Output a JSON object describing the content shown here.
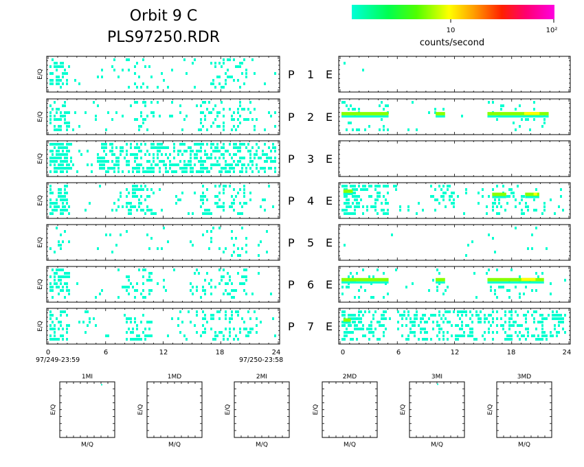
{
  "title": {
    "line1": "Orbit  9  C",
    "line2": "PLS97250.RDR"
  },
  "colorbar": {
    "label": "counts/second",
    "tick_labels": [
      "10",
      "10²"
    ],
    "stops": [
      "#00ffd8",
      "#00ff50",
      "#50ff00",
      "#ffff00",
      "#ffa000",
      "#ff2000",
      "#ff0070",
      "#ff00e0"
    ]
  },
  "colors": {
    "low": "#00ffd0",
    "mid": "#88ff00",
    "high": "#ffff00"
  },
  "panel_rows": [
    {
      "p": "P",
      "num": "1",
      "e": "E"
    },
    {
      "p": "P",
      "num": "2",
      "e": "E"
    },
    {
      "p": "P",
      "num": "3",
      "e": "E"
    },
    {
      "p": "P",
      "num": "4",
      "e": "E"
    },
    {
      "p": "P",
      "num": "5",
      "e": "E"
    },
    {
      "p": "P",
      "num": "6",
      "e": "E"
    },
    {
      "p": "P",
      "num": "7",
      "e": "E"
    }
  ],
  "ylabel": "E/Q",
  "left_dates": {
    "start": "97/249-23:59",
    "end": "97/250-23:58"
  },
  "chart_data": [
    {
      "type": "heatmap",
      "name": "left-column",
      "ylabel": "E/Q",
      "xlim": [
        0,
        24
      ],
      "xticks": [
        "0",
        "6",
        "12",
        "18",
        "24"
      ],
      "rows": [
        {
          "label": "P 1",
          "density": 0.16,
          "hot_ranges": [
            [
              0,
              2
            ],
            [
              8,
              10
            ],
            [
              17,
              21
            ]
          ],
          "enh": []
        },
        {
          "label": "P 2",
          "density": 0.17,
          "hot_ranges": [
            [
              0,
              2.2
            ],
            [
              9,
              11
            ],
            [
              16,
              22
            ]
          ],
          "enh": []
        },
        {
          "label": "P 3",
          "density": 0.28,
          "hot_ranges": [
            [
              0,
              2.5
            ],
            [
              5,
              24
            ]
          ],
          "enh": []
        },
        {
          "label": "P 4",
          "density": 0.18,
          "hot_ranges": [
            [
              0,
              2.5
            ],
            [
              8,
              11
            ],
            [
              16,
              21
            ]
          ],
          "enh": []
        },
        {
          "label": "P 5",
          "density": 0.07,
          "hot_ranges": [
            [
              0,
              2
            ],
            [
              10,
              11
            ],
            [
              18,
              21
            ]
          ],
          "enh": []
        },
        {
          "label": "P 6",
          "density": 0.15,
          "hot_ranges": [
            [
              0,
              2.2
            ],
            [
              8,
              11
            ],
            [
              16,
              21
            ]
          ],
          "enh": []
        },
        {
          "label": "P 7",
          "density": 0.17,
          "hot_ranges": [
            [
              0,
              2
            ],
            [
              8,
              11
            ],
            [
              16,
              22
            ]
          ],
          "enh": []
        }
      ]
    },
    {
      "type": "heatmap",
      "name": "right-column",
      "ylabel": "E/Q",
      "xlim": [
        0,
        24
      ],
      "xticks": [
        "0",
        "6",
        "12",
        "18",
        "24"
      ],
      "rows": [
        {
          "label": "P 1 E",
          "density": 0.004,
          "hot_ranges": [],
          "enh": []
        },
        {
          "label": "P 2 E",
          "density": 0.06,
          "hot_ranges": [
            [
              0,
              5
            ],
            [
              10,
              11.5
            ],
            [
              15.5,
              22
            ]
          ],
          "enh": [
            {
              "x0": 0,
              "x1": 5,
              "y": 0.35,
              "level": "mid"
            },
            {
              "x0": 10,
              "x1": 11,
              "y": 0.35,
              "level": "mid"
            },
            {
              "x0": 15.5,
              "x1": 22,
              "y": 0.35,
              "level": "high"
            }
          ]
        },
        {
          "label": "P 3 E",
          "density": 0.0,
          "hot_ranges": [],
          "enh": []
        },
        {
          "label": "P 4 E",
          "density": 0.2,
          "hot_ranges": [
            [
              0,
              5
            ],
            [
              10,
              12
            ],
            [
              16,
              21
            ]
          ],
          "enh": [
            {
              "x0": 0.2,
              "x1": 1.2,
              "y": 0.15,
              "level": "mid"
            },
            {
              "x0": 16,
              "x1": 17.5,
              "y": 0.25,
              "level": "mid"
            },
            {
              "x0": 19.5,
              "x1": 21,
              "y": 0.25,
              "level": "high"
            }
          ]
        },
        {
          "label": "P 5 E",
          "density": 0.02,
          "hot_ranges": [
            [
              16,
              21
            ]
          ],
          "enh": []
        },
        {
          "label": "P 6 E",
          "density": 0.06,
          "hot_ranges": [
            [
              0,
              5
            ],
            [
              10,
              11.5
            ],
            [
              15.5,
              21.5
            ]
          ],
          "enh": [
            {
              "x0": 0,
              "x1": 5,
              "y": 0.3,
              "level": "mid"
            },
            {
              "x0": 10,
              "x1": 11,
              "y": 0.3,
              "level": "mid"
            },
            {
              "x0": 15.5,
              "x1": 21.5,
              "y": 0.3,
              "level": "high"
            }
          ]
        },
        {
          "label": "P 7 E",
          "density": 0.22,
          "hot_ranges": [
            [
              0,
              5
            ],
            [
              6,
              24
            ]
          ],
          "enh": [
            {
              "x0": 0.2,
              "x1": 1,
              "y": 0.25,
              "level": "mid"
            }
          ]
        }
      ]
    },
    {
      "type": "scatter",
      "name": "mass-panels",
      "xlabel": "M/Q",
      "ylabel": "E/Q",
      "panels": [
        {
          "title": "1MI",
          "points": [
            {
              "x": 0.75,
              "y": 0.96
            }
          ]
        },
        {
          "title": "1MD",
          "points": []
        },
        {
          "title": "2MI",
          "points": []
        },
        {
          "title": "2MD",
          "points": []
        },
        {
          "title": "3MI",
          "points": [
            {
              "x": 0.5,
              "y": 0.97
            }
          ]
        },
        {
          "title": "3MD",
          "points": []
        }
      ]
    }
  ]
}
